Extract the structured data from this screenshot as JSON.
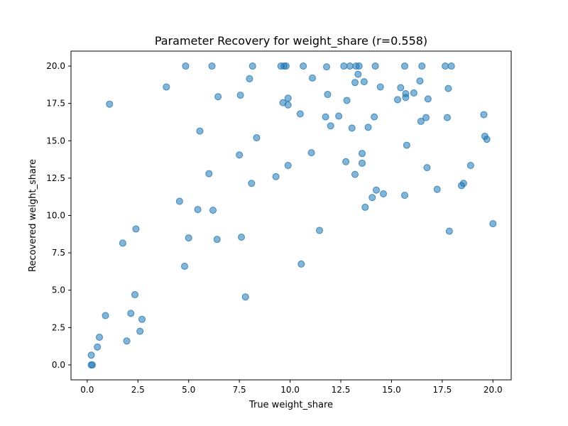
{
  "chart_data": {
    "type": "scatter",
    "title": "Parameter Recovery for weight_share (r=0.558)",
    "xlabel": "True weight_share",
    "ylabel": "Recovered weight_share",
    "xlim": [
      -0.8,
      20.9
    ],
    "ylim": [
      -1.0,
      21.0
    ],
    "xticks": [
      0.0,
      2.5,
      5.0,
      7.5,
      10.0,
      12.5,
      15.0,
      17.5,
      20.0
    ],
    "xtick_labels": [
      "0.0",
      "2.5",
      "5.0",
      "7.5",
      "10.0",
      "12.5",
      "15.0",
      "17.5",
      "20.0"
    ],
    "yticks": [
      0.0,
      2.5,
      5.0,
      7.5,
      10.0,
      12.5,
      15.0,
      17.5,
      20.0
    ],
    "ytick_labels": [
      "0.0",
      "2.5",
      "5.0",
      "7.5",
      "10.0",
      "12.5",
      "15.0",
      "17.5",
      "20.0"
    ],
    "grid": false,
    "marker_color": "#1f77b4",
    "marker_alpha": 0.55,
    "series": [
      {
        "points": [
          [
            0.2,
            0.0
          ],
          [
            0.25,
            0.0
          ],
          [
            0.2,
            0.65
          ],
          [
            0.5,
            1.2
          ],
          [
            0.6,
            1.85
          ],
          [
            0.9,
            3.3
          ],
          [
            1.1,
            17.45
          ],
          [
            1.75,
            8.15
          ],
          [
            1.95,
            1.6
          ],
          [
            2.15,
            3.45
          ],
          [
            2.35,
            4.7
          ],
          [
            2.4,
            9.1
          ],
          [
            2.6,
            2.25
          ],
          [
            2.7,
            3.05
          ],
          [
            3.9,
            18.6
          ],
          [
            4.55,
            10.95
          ],
          [
            4.8,
            6.6
          ],
          [
            4.85,
            20.0
          ],
          [
            5.0,
            8.5
          ],
          [
            5.45,
            10.4
          ],
          [
            5.55,
            15.65
          ],
          [
            6.0,
            12.8
          ],
          [
            6.15,
            20.0
          ],
          [
            6.2,
            10.35
          ],
          [
            6.4,
            8.4
          ],
          [
            6.45,
            17.95
          ],
          [
            7.5,
            14.05
          ],
          [
            7.55,
            18.05
          ],
          [
            7.6,
            8.55
          ],
          [
            7.8,
            4.55
          ],
          [
            8.0,
            19.15
          ],
          [
            8.1,
            12.15
          ],
          [
            8.15,
            20.0
          ],
          [
            8.35,
            15.2
          ],
          [
            9.3,
            12.6
          ],
          [
            9.55,
            20.0
          ],
          [
            9.65,
            17.55
          ],
          [
            9.7,
            20.0
          ],
          [
            9.8,
            20.0
          ],
          [
            9.9,
            17.85
          ],
          [
            9.9,
            17.4
          ],
          [
            9.9,
            13.35
          ],
          [
            10.5,
            16.8
          ],
          [
            10.55,
            6.75
          ],
          [
            10.65,
            20.0
          ],
          [
            11.05,
            14.2
          ],
          [
            11.1,
            19.2
          ],
          [
            11.45,
            9.0
          ],
          [
            11.75,
            16.6
          ],
          [
            11.8,
            19.95
          ],
          [
            11.85,
            18.1
          ],
          [
            12.0,
            16.0
          ],
          [
            12.4,
            16.65
          ],
          [
            12.65,
            20.0
          ],
          [
            12.75,
            13.6
          ],
          [
            12.8,
            17.7
          ],
          [
            12.95,
            20.0
          ],
          [
            13.05,
            15.85
          ],
          [
            13.2,
            18.9
          ],
          [
            13.2,
            12.75
          ],
          [
            13.25,
            20.0
          ],
          [
            13.35,
            19.45
          ],
          [
            13.4,
            20.0
          ],
          [
            13.55,
            14.15
          ],
          [
            13.55,
            13.5
          ],
          [
            13.65,
            18.95
          ],
          [
            13.7,
            10.55
          ],
          [
            13.85,
            15.9
          ],
          [
            14.05,
            11.2
          ],
          [
            14.15,
            16.6
          ],
          [
            14.2,
            20.0
          ],
          [
            14.25,
            11.7
          ],
          [
            14.45,
            18.6
          ],
          [
            14.6,
            11.45
          ],
          [
            15.3,
            17.75
          ],
          [
            15.45,
            18.55
          ],
          [
            15.65,
            20.0
          ],
          [
            15.65,
            11.35
          ],
          [
            15.7,
            18.15
          ],
          [
            15.7,
            17.9
          ],
          [
            15.75,
            14.7
          ],
          [
            16.1,
            18.2
          ],
          [
            16.4,
            19.0
          ],
          [
            16.45,
            16.3
          ],
          [
            16.5,
            20.0
          ],
          [
            16.7,
            16.55
          ],
          [
            16.75,
            13.2
          ],
          [
            16.8,
            17.8
          ],
          [
            17.25,
            11.75
          ],
          [
            17.65,
            20.0
          ],
          [
            17.75,
            16.55
          ],
          [
            17.8,
            18.5
          ],
          [
            17.85,
            8.95
          ],
          [
            17.95,
            20.0
          ],
          [
            18.45,
            12.0
          ],
          [
            18.55,
            12.15
          ],
          [
            18.9,
            13.35
          ],
          [
            19.55,
            16.75
          ],
          [
            19.6,
            15.3
          ],
          [
            19.7,
            15.1
          ],
          [
            20.0,
            9.45
          ]
        ]
      }
    ]
  }
}
